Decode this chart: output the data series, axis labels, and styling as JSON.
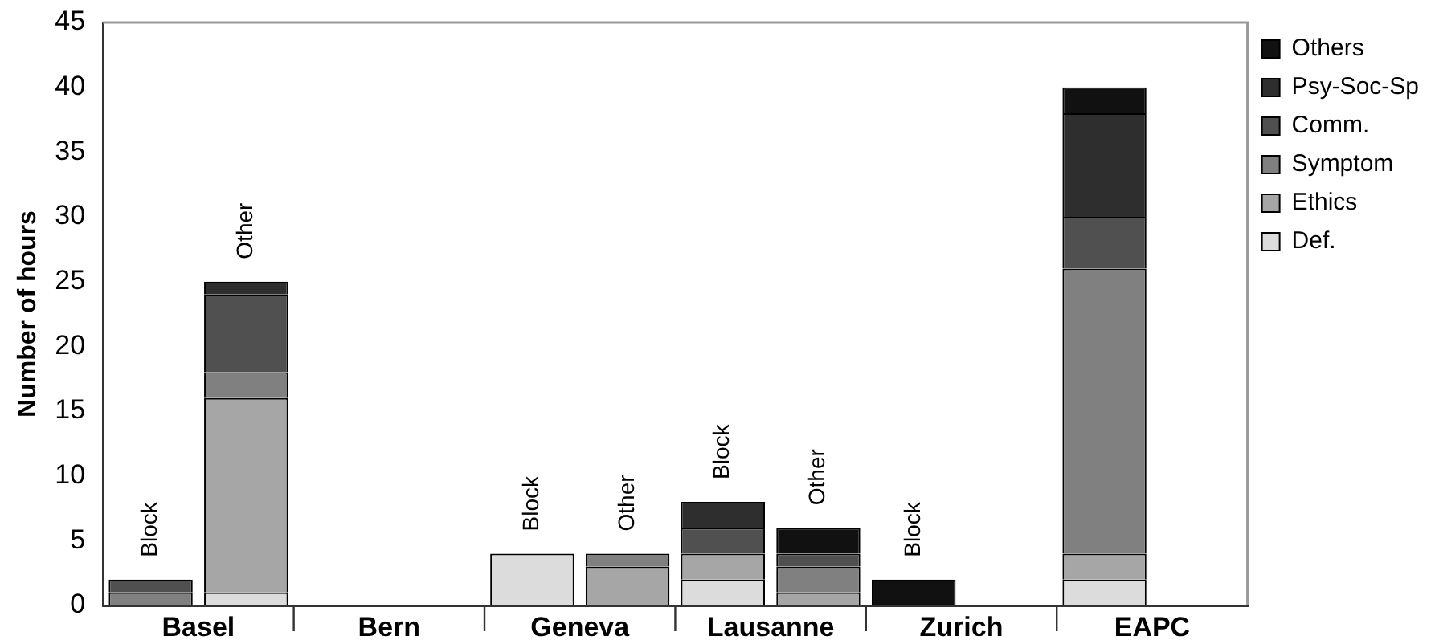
{
  "chart_data": {
    "type": "bar",
    "stacked": true,
    "ylabel": "Number of hours",
    "categories": [
      "Basel",
      null,
      "Bern",
      null,
      "Geneva",
      null,
      "Lausanne",
      null,
      "Zurich",
      null,
      "EAPC",
      null
    ],
    "series": [
      {
        "name": "Def.",
        "color": "#dcdcdc",
        "values": [
          null,
          1,
          null,
          null,
          4,
          null,
          2,
          null,
          null,
          null,
          2,
          null
        ]
      },
      {
        "name": "Ethics",
        "color": "#a6a6a6",
        "values": [
          null,
          15,
          null,
          null,
          null,
          3,
          2,
          1,
          null,
          null,
          2,
          null
        ]
      },
      {
        "name": "Symptom",
        "color": "#808080",
        "values": [
          1,
          2,
          null,
          null,
          null,
          1,
          null,
          2,
          null,
          null,
          22,
          null
        ]
      },
      {
        "name": "Comm.",
        "color": "#505050",
        "values": [
          1,
          6,
          null,
          null,
          null,
          null,
          2,
          1,
          null,
          null,
          4,
          null
        ]
      },
      {
        "name": "Psy-Soc-Sp",
        "color": "#2e2e2e",
        "values": [
          null,
          1,
          null,
          null,
          null,
          null,
          2,
          null,
          null,
          null,
          8,
          null
        ]
      },
      {
        "name": "Others",
        "color": "#111111",
        "values": [
          null,
          null,
          null,
          null,
          null,
          null,
          null,
          2,
          2,
          null,
          2,
          null
        ]
      }
    ],
    "annotations": [
      "Block",
      "Other",
      "Block",
      "Other",
      "Block",
      "Other",
      "Block"
    ],
    "ylim": [
      0,
      45
    ],
    "yticks": [
      0,
      5,
      10,
      15,
      20,
      25,
      30,
      35,
      40,
      45
    ],
    "grid": false,
    "legend": "top right"
  }
}
